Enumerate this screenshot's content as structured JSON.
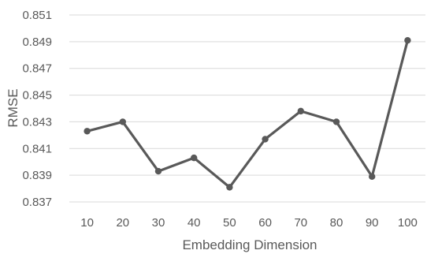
{
  "chart_data": {
    "type": "line",
    "title": "",
    "xlabel": "Embedding Dimension",
    "ylabel": "RMSE",
    "categories": [
      "10",
      "20",
      "30",
      "40",
      "50",
      "60",
      "70",
      "80",
      "90",
      "100"
    ],
    "series": [
      {
        "values": [
          0.8423,
          0.843,
          0.8393,
          0.8403,
          0.8381,
          0.8417,
          0.8438,
          0.843,
          0.8389,
          0.8491
        ]
      }
    ],
    "ylim": [
      0.837,
      0.851
    ],
    "yticks": [
      "0.837",
      "0.839",
      "0.841",
      "0.843",
      "0.845",
      "0.847",
      "0.849",
      "0.851"
    ],
    "grid": true,
    "legend": "none",
    "colors": {
      "line": "#595959",
      "grid": "#d9d9d9",
      "text": "#595959"
    }
  }
}
